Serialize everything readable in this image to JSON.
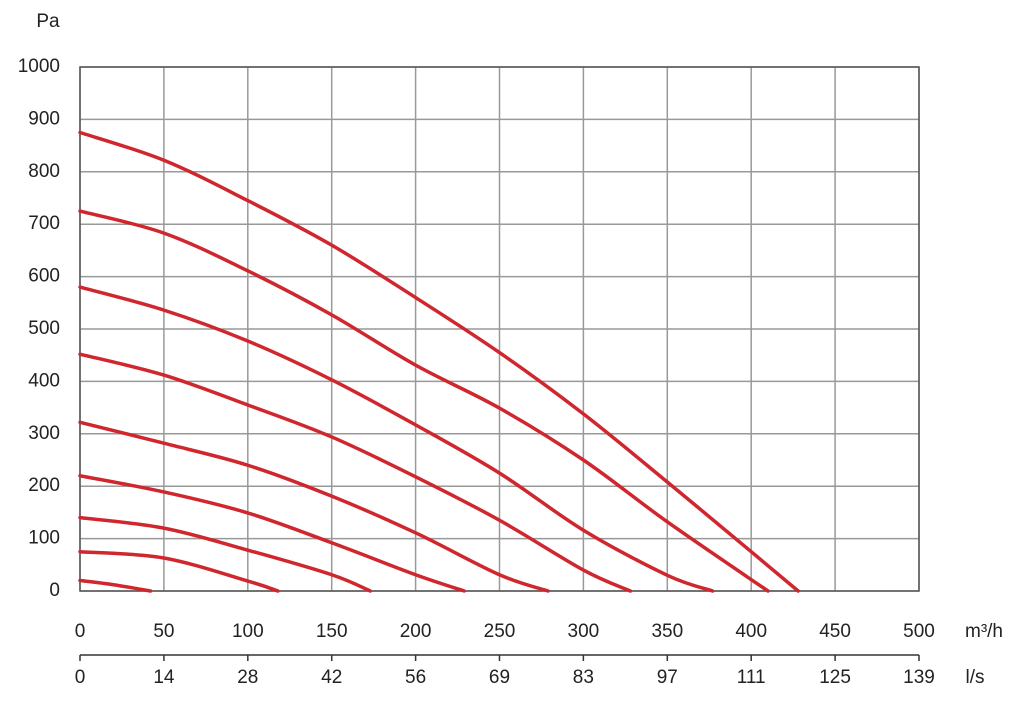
{
  "chart_data": {
    "type": "line",
    "y_unit": "Pa",
    "x_unit": "m³/h",
    "x2_unit": "l/s",
    "xlim": [
      0,
      500
    ],
    "xticks": [
      0,
      50,
      100,
      150,
      200,
      250,
      300,
      350,
      400,
      450,
      500
    ],
    "x2lim": [
      0,
      138.89
    ],
    "x2ticks": [
      0,
      {
        "value": 13.89,
        "label": "14"
      },
      {
        "value": 27.78,
        "label": "28"
      },
      {
        "value": 41.67,
        "label": "42"
      },
      {
        "value": 55.56,
        "label": "56"
      },
      {
        "value": 69.44,
        "label": "69"
      },
      {
        "value": 83.33,
        "label": "83"
      },
      {
        "value": 97.22,
        "label": "97"
      },
      {
        "value": 111.11,
        "label": "111"
      },
      125,
      {
        "value": 138.89,
        "label": "139"
      }
    ],
    "ylim": [
      0,
      1000
    ],
    "yticks": [
      0,
      100,
      200,
      300,
      400,
      500,
      600,
      700,
      800,
      900,
      1000
    ],
    "grid": true,
    "color": "#d0262e",
    "series": [
      {
        "x": [
          0,
          50,
          100,
          150,
          200,
          250,
          300,
          350,
          400,
          428
        ],
        "values": [
          875,
          822,
          745,
          660,
          560,
          455,
          338,
          208,
          75,
          0
        ]
      },
      {
        "x": [
          0,
          50,
          100,
          150,
          200,
          250,
          300,
          350,
          410
        ],
        "values": [
          725,
          683,
          611,
          527,
          431,
          349,
          250,
          132,
          0
        ]
      },
      {
        "x": [
          0,
          50,
          100,
          150,
          200,
          250,
          300,
          350,
          377
        ],
        "values": [
          580,
          536,
          477,
          403,
          317,
          225,
          116,
          30,
          0
        ]
      },
      {
        "x": [
          0,
          50,
          100,
          150,
          200,
          250,
          300,
          328
        ],
        "values": [
          452,
          412,
          355,
          294,
          218,
          135,
          40,
          0
        ]
      },
      {
        "x": [
          0,
          50,
          100,
          150,
          200,
          250,
          279
        ],
        "values": [
          322,
          282,
          240,
          181,
          111,
          31,
          0
        ]
      },
      {
        "x": [
          0,
          50,
          100,
          150,
          200,
          229
        ],
        "values": [
          220,
          189,
          149,
          92,
          31,
          0
        ]
      },
      {
        "x": [
          0,
          50,
          100,
          150,
          173
        ],
        "values": [
          140,
          120,
          78,
          31,
          0
        ]
      },
      {
        "x": [
          0,
          50,
          100,
          118
        ],
        "values": [
          75,
          63,
          19,
          0
        ]
      },
      {
        "x": [
          0,
          20,
          42
        ],
        "values": [
          20,
          12,
          0
        ]
      }
    ]
  }
}
